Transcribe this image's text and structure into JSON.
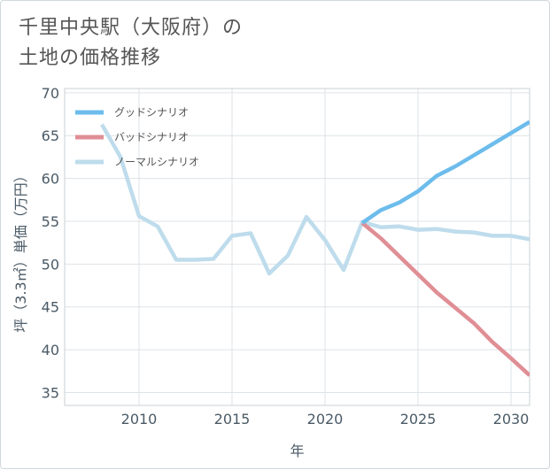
{
  "title": {
    "line1": "千里中央駅（大阪府）の",
    "line2": "土地の価格推移"
  },
  "chart_data": {
    "type": "line",
    "xlabel": "年",
    "ylabel": "坪（3.3㎡）単価（万円）",
    "xlim": [
      2006,
      2031
    ],
    "ylim": [
      33.5,
      70.5
    ],
    "xticks": [
      2010,
      2015,
      2020,
      2025,
      2030
    ],
    "yticks": [
      35,
      40,
      45,
      50,
      55,
      60,
      65,
      70
    ],
    "grid": true,
    "legend_position": "top-left",
    "series": [
      {
        "name": "グッドシナリオ",
        "color": "#6cbcec",
        "x": [
          2022,
          2023,
          2024,
          2025,
          2026,
          2027,
          2028,
          2029,
          2030,
          2031
        ],
        "y": [
          54.8,
          56.3,
          57.2,
          58.5,
          60.3,
          61.4,
          62.7,
          64.0,
          65.3,
          66.6
        ]
      },
      {
        "name": "バッドシナリオ",
        "color": "#e08e95",
        "x": [
          2022,
          2023,
          2024,
          2025,
          2026,
          2027,
          2028,
          2029,
          2030,
          2031
        ],
        "y": [
          54.8,
          53.0,
          50.9,
          48.8,
          46.7,
          44.9,
          43.1,
          40.9,
          39.0,
          37.0
        ]
      },
      {
        "name": "ノーマルシナリオ",
        "color": "#bedcec",
        "x": [
          2008,
          2009,
          2010,
          2011,
          2012,
          2013,
          2014,
          2015,
          2016,
          2017,
          2018,
          2019,
          2020,
          2021,
          2022,
          2023,
          2024,
          2025,
          2026,
          2027,
          2028,
          2029,
          2030,
          2031
        ],
        "y": [
          66.3,
          62.5,
          55.6,
          54.4,
          50.5,
          50.5,
          50.6,
          53.3,
          53.6,
          48.9,
          51.0,
          55.5,
          52.8,
          49.3,
          54.9,
          54.3,
          54.4,
          54.0,
          54.1,
          53.8,
          53.7,
          53.3,
          53.3,
          52.9
        ]
      }
    ]
  }
}
